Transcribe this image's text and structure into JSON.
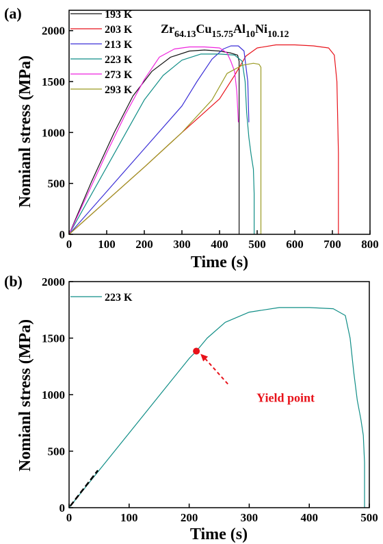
{
  "chart_data": [
    {
      "panel_label": "(a)",
      "type": "line",
      "xlabel": "Time (s)",
      "ylabel": "Nomianl stress (MPa)",
      "xlim": [
        0,
        800
      ],
      "ylim": [
        0,
        2200
      ],
      "xticks": [
        "0",
        "100",
        "200",
        "300",
        "400",
        "500",
        "600",
        "700",
        "800"
      ],
      "yticks": [
        "0",
        "500",
        "1000",
        "1500",
        "2000"
      ],
      "xtick_values": [
        0,
        100,
        200,
        300,
        400,
        500,
        600,
        700,
        800
      ],
      "ytick_values": [
        0,
        500,
        1000,
        1500,
        2000
      ],
      "legend_placement": "top-left",
      "composition": {
        "el1": "Zr",
        "sub1": "64.13",
        "el2": "Cu",
        "sub2": "15.75",
        "el3": "Al",
        "sub3": "10",
        "el4": "Ni",
        "sub4": "10.12"
      },
      "series": [
        {
          "name": "193 K",
          "color": "#111111",
          "x": [
            0,
            60,
            120,
            170,
            220,
            270,
            320,
            360,
            400,
            430,
            448,
            452,
            452
          ],
          "y": [
            0,
            520,
            1000,
            1360,
            1600,
            1740,
            1800,
            1810,
            1800,
            1780,
            1760,
            1700,
            0
          ]
        },
        {
          "name": "203 K",
          "color": "#e8121a",
          "x": [
            0,
            100,
            200,
            300,
            400,
            440,
            470,
            500,
            550,
            600,
            650,
            690,
            705,
            712,
            716,
            716
          ],
          "y": [
            0,
            330,
            660,
            1000,
            1330,
            1560,
            1750,
            1830,
            1860,
            1860,
            1850,
            1830,
            1760,
            1500,
            800,
            0
          ]
        },
        {
          "name": "213 K",
          "color": "#3a2ed6",
          "x": [
            0,
            100,
            200,
            300,
            340,
            380,
            410,
            430,
            450,
            465,
            475,
            478
          ],
          "y": [
            0,
            420,
            840,
            1260,
            1500,
            1720,
            1820,
            1850,
            1850,
            1800,
            1500,
            1100
          ]
        },
        {
          "name": "223 K",
          "color": "#0f8d86",
          "x": [
            0,
            50,
            100,
            150,
            200,
            250,
            300,
            350,
            400,
            440,
            460,
            468,
            472,
            478,
            484,
            490,
            492,
            492
          ],
          "y": [
            0,
            330,
            660,
            990,
            1320,
            1560,
            1710,
            1770,
            1770,
            1760,
            1700,
            1500,
            1200,
            950,
            780,
            640,
            400,
            0
          ]
        },
        {
          "name": "273 K",
          "color": "#ee22dd",
          "x": [
            0,
            50,
            100,
            150,
            200,
            240,
            280,
            320,
            360,
            400,
            420,
            430,
            440,
            446,
            450
          ],
          "y": [
            0,
            400,
            800,
            1180,
            1520,
            1740,
            1820,
            1840,
            1840,
            1830,
            1780,
            1700,
            1600,
            1400,
            1100
          ]
        },
        {
          "name": "293 K",
          "color": "#9a9a22",
          "x": [
            0,
            100,
            200,
            300,
            380,
            420,
            460,
            490,
            505,
            510,
            510
          ],
          "y": [
            0,
            330,
            660,
            1000,
            1320,
            1580,
            1660,
            1680,
            1670,
            1640,
            0
          ]
        }
      ]
    },
    {
      "panel_label": "(b)",
      "type": "line",
      "xlabel": "Time (s)",
      "ylabel": "Nomianl stress (MPa)",
      "xlim": [
        0,
        500
      ],
      "ylim": [
        0,
        2000
      ],
      "xticks": [
        "0",
        "100",
        "200",
        "300",
        "400",
        "500"
      ],
      "yticks": [
        "0",
        "500",
        "1000",
        "1500",
        "2000"
      ],
      "xtick_values": [
        0,
        100,
        200,
        300,
        400,
        500
      ],
      "ytick_values": [
        0,
        500,
        1000,
        1500,
        2000
      ],
      "legend_placement": "top-left",
      "annotation": {
        "text": "Yield point",
        "x": 212,
        "y": 1385,
        "color": "#e8121a"
      },
      "series": [
        {
          "name": "223 K",
          "color": "#0f8d86",
          "x": [
            0,
            50,
            100,
            150,
            200,
            212,
            230,
            260,
            300,
            350,
            400,
            440,
            460,
            468,
            474,
            480,
            486,
            490,
            492,
            492
          ],
          "y": [
            0,
            330,
            660,
            990,
            1320,
            1385,
            1500,
            1640,
            1730,
            1770,
            1770,
            1760,
            1700,
            1500,
            1200,
            950,
            780,
            640,
            400,
            0
          ]
        }
      ]
    }
  ]
}
